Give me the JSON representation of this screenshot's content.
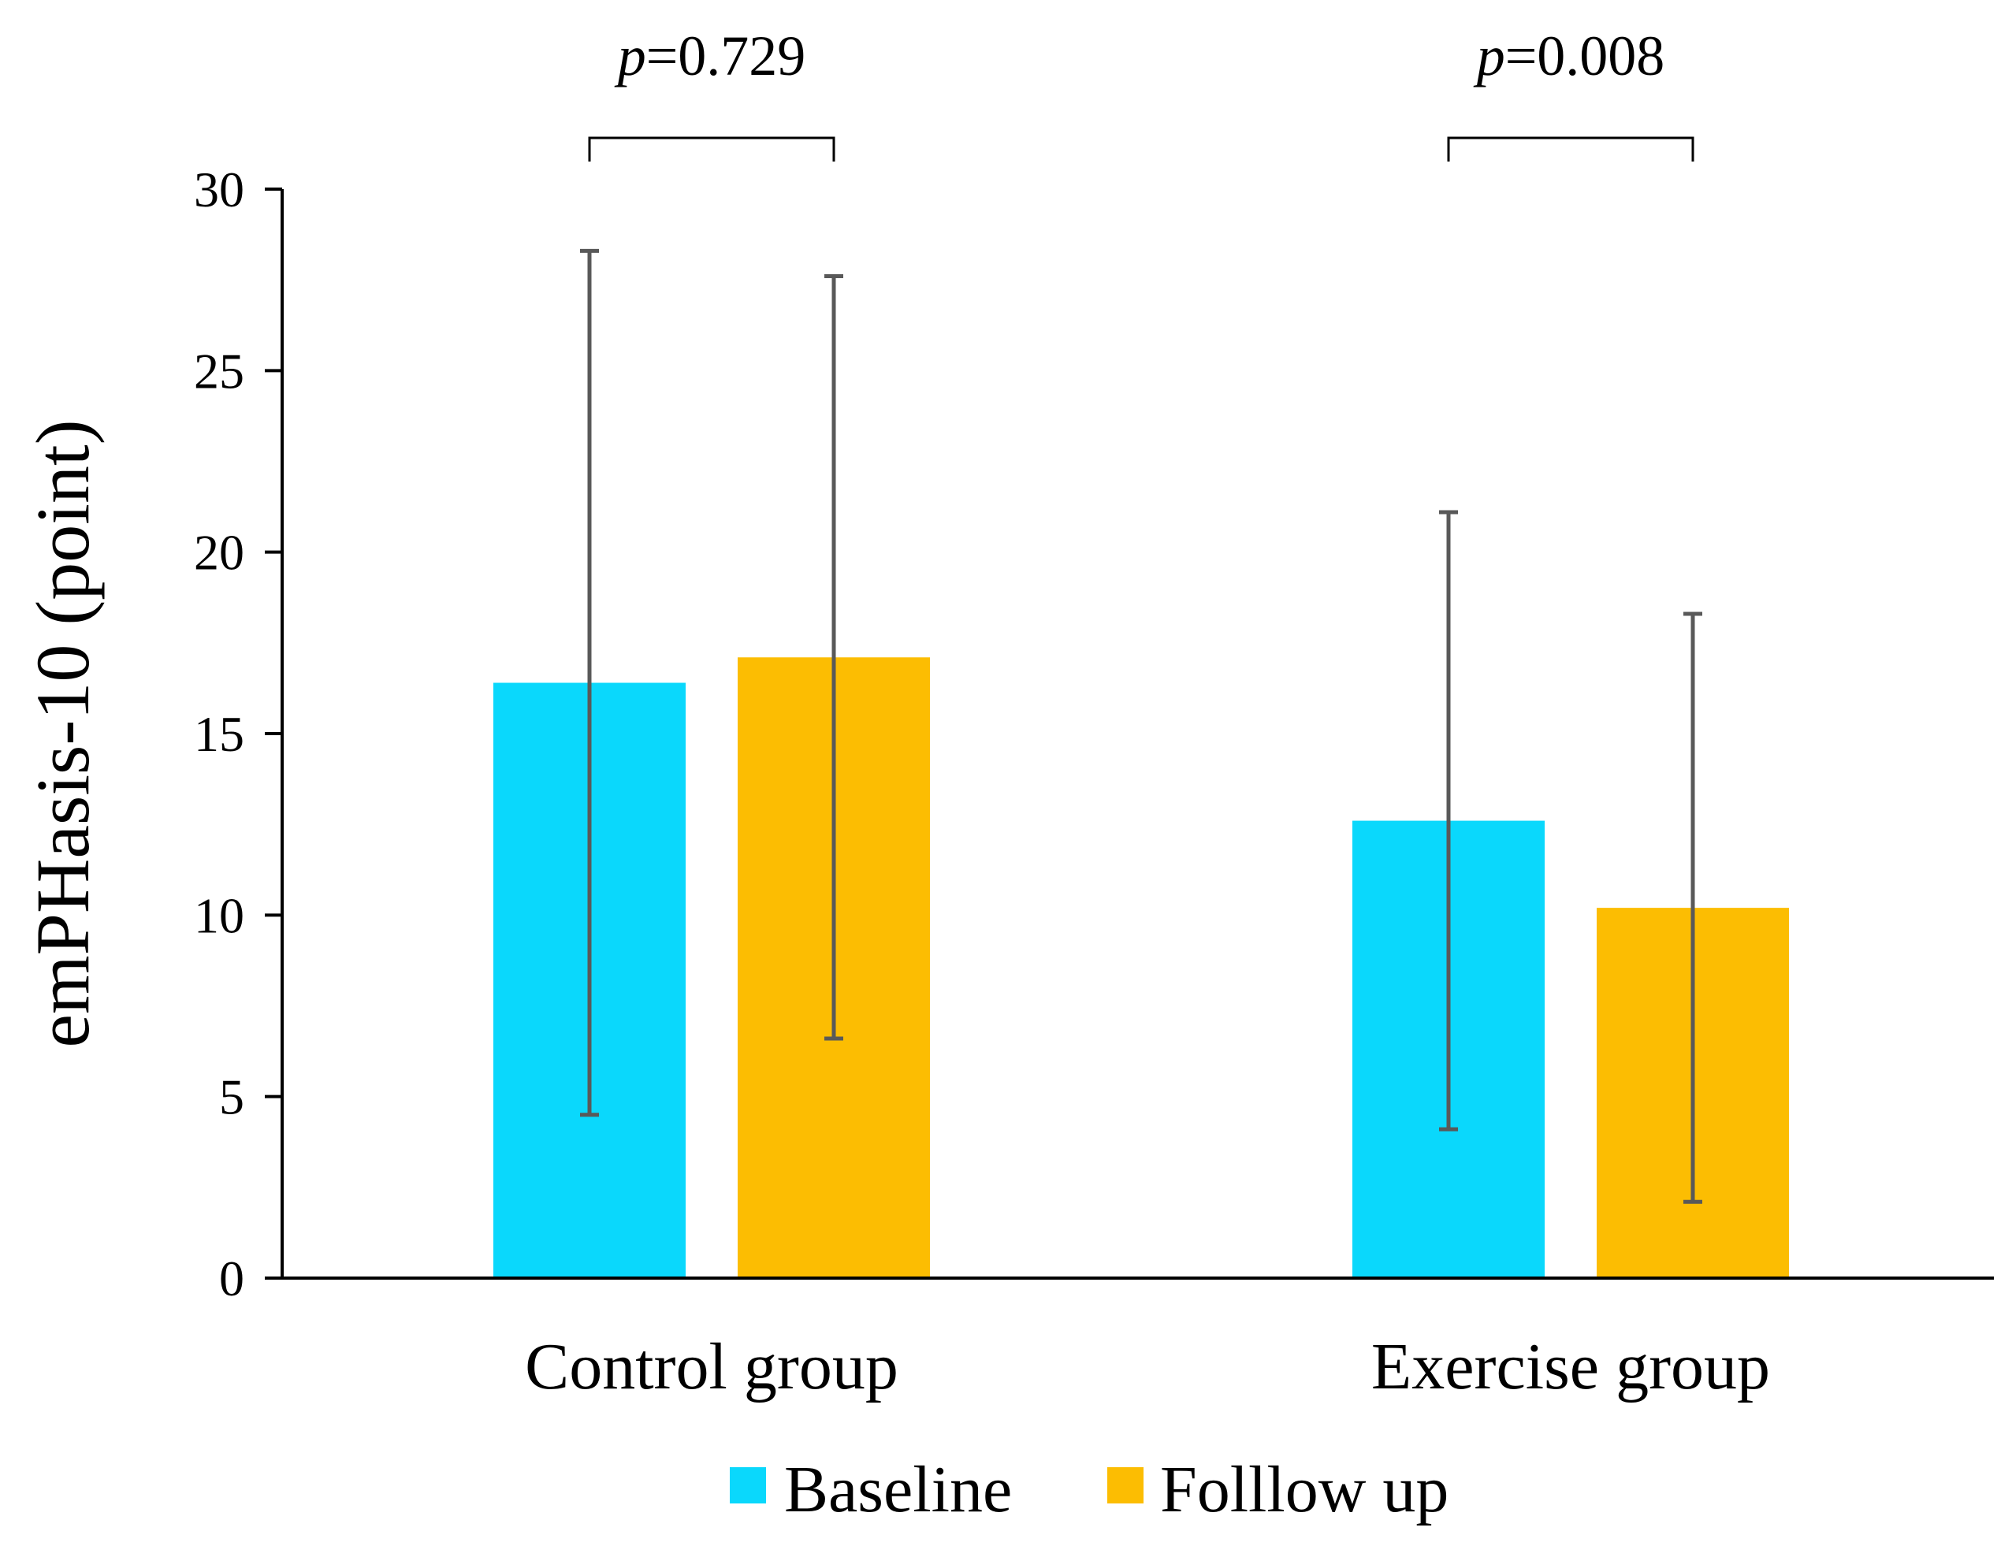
{
  "chart_data": {
    "type": "bar",
    "title": "",
    "xlabel": "",
    "ylabel": "emPHasis-10 (point)",
    "ylim": [
      0,
      30
    ],
    "yticks": [
      0,
      5,
      10,
      15,
      20,
      25,
      30
    ],
    "categories": [
      "Control group",
      "Exercise group"
    ],
    "series": [
      {
        "name": "Baseline",
        "color": "#0AD8FC",
        "values": [
          16.4,
          12.6
        ],
        "error_low": [
          4.5,
          4.1
        ],
        "error_high": [
          28.3,
          21.1
        ]
      },
      {
        "name": "Folllow up",
        "color": "#FCBD02",
        "values": [
          17.1,
          10.2
        ],
        "error_low": [
          6.6,
          2.1
        ],
        "error_high": [
          27.6,
          18.3
        ]
      }
    ],
    "annotations": [
      {
        "category": "Control group",
        "prefix": "p",
        "text": "=0.729"
      },
      {
        "category": "Exercise group",
        "prefix": "p",
        "text": "=0.008"
      }
    ],
    "legend_position": "bottom",
    "grid": false
  }
}
